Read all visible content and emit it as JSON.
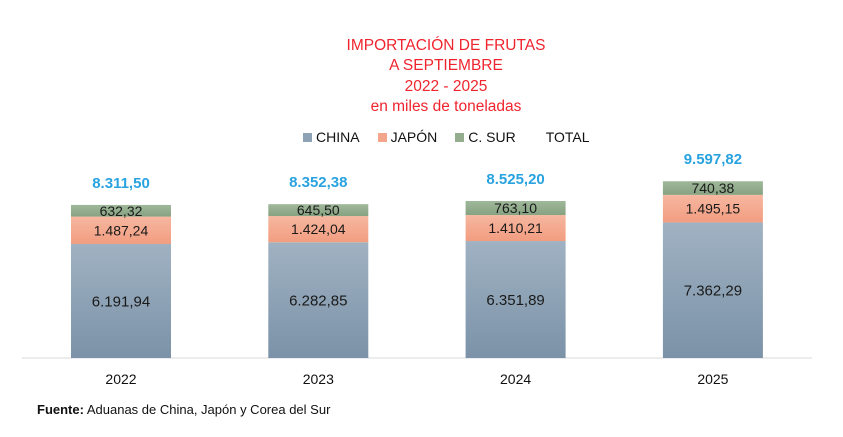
{
  "chart_data": {
    "type": "bar",
    "stacked": true,
    "title": [
      "IMPORTACIÓN DE FRUTAS",
      "A SEPTIEMBRE",
      "2022 - 2025",
      "en miles de toneladas"
    ],
    "categories": [
      "2022",
      "2023",
      "2024",
      "2025"
    ],
    "series": [
      {
        "name": "CHINA",
        "color": "#8da2b5",
        "values": [
          6191.94,
          6282.85,
          6351.89,
          7362.29
        ],
        "labels": [
          "6.191,94",
          "6.282,85",
          "6.351,89",
          "7.362,29"
        ]
      },
      {
        "name": "JAPÓN",
        "color": "#f4a68c",
        "values": [
          1487.24,
          1424.04,
          1410.21,
          1495.15
        ],
        "labels": [
          "1.487,24",
          "1.424,04",
          "1.410,21",
          "1.495,15"
        ]
      },
      {
        "name": "C. SUR",
        "color": "#93ad8e",
        "values": [
          632.32,
          645.5,
          763.1,
          740.38
        ],
        "labels": [
          "632,32",
          "645,50",
          "763,10",
          "740,38"
        ]
      }
    ],
    "totals": {
      "name": "TOTAL",
      "color": "#29a3e0",
      "values": [
        8311.5,
        8352.38,
        8525.2,
        9597.82
      ],
      "labels": [
        "8.311,50",
        "8.352,38",
        "8.525,20",
        "9.597,82"
      ]
    },
    "ylim": [
      0,
      12000
    ],
    "grid": false,
    "legend_position": "top"
  },
  "source": {
    "label": "Fuente:",
    "text": " Aduanas de China, Japón y Corea del Sur"
  }
}
